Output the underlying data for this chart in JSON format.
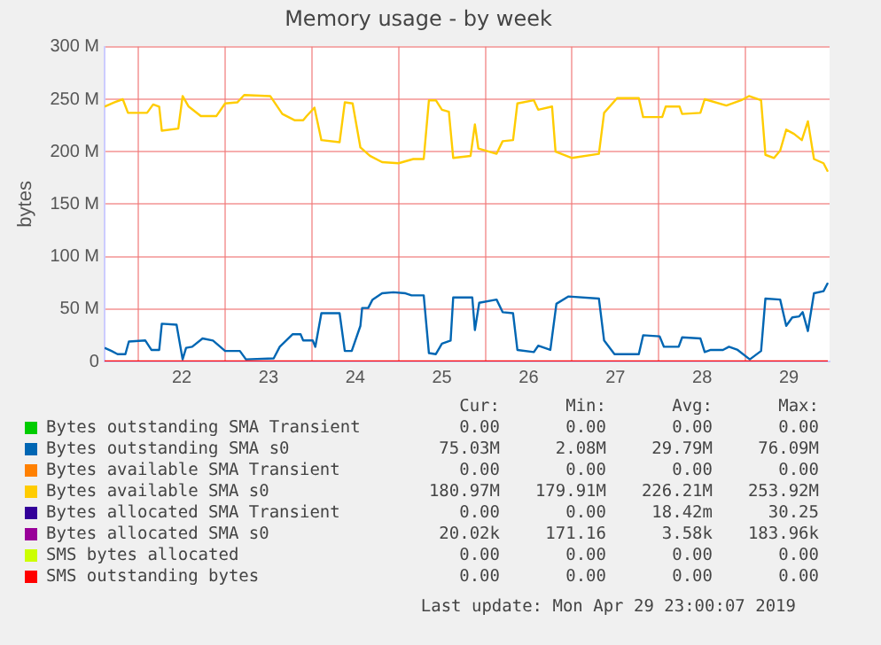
{
  "chart_data": {
    "type": "line",
    "title": "Memory usage - by week",
    "ylabel": "bytes",
    "xlim": [
      21.11,
      29.47
    ],
    "xticks": [
      {
        "value": 21.5,
        "label": null
      },
      {
        "value": 22,
        "label": "22"
      },
      {
        "value": 22.5,
        "label": null
      },
      {
        "value": 23,
        "label": "23"
      },
      {
        "value": 23.5,
        "label": null
      },
      {
        "value": 24,
        "label": "24"
      },
      {
        "value": 24.5,
        "label": null
      },
      {
        "value": 25,
        "label": "25"
      },
      {
        "value": 25.5,
        "label": null
      },
      {
        "value": 26,
        "label": "26"
      },
      {
        "value": 26.5,
        "label": null
      },
      {
        "value": 27,
        "label": "27"
      },
      {
        "value": 27.5,
        "label": null
      },
      {
        "value": 28,
        "label": "28"
      },
      {
        "value": 28.5,
        "label": null
      },
      {
        "value": 29,
        "label": "29"
      }
    ],
    "ylim": [
      0,
      300
    ],
    "yticks": [
      0,
      {
        "value": 50,
        "label": "50 M"
      },
      {
        "value": 100,
        "label": "100 M"
      },
      {
        "value": 150,
        "label": "150 M"
      },
      {
        "value": 200,
        "label": "200 M"
      },
      {
        "value": 250,
        "label": "250 M"
      },
      {
        "value": 300,
        "label": "300 M"
      }
    ],
    "grid": true,
    "legend": "bottom",
    "series": [
      {
        "name": "Bytes outstanding SMA Transient",
        "color": "#00cc00"
      },
      {
        "name": "Bytes outstanding SMA s0",
        "color": "#0066b3",
        "x": [
          21.11,
          21.19,
          21.26,
          21.35,
          21.39,
          21.58,
          21.65,
          21.74,
          21.77,
          21.94,
          22.01,
          22.05,
          22.12,
          22.24,
          22.36,
          22.5,
          22.67,
          22.74,
          23.06,
          23.13,
          23.28,
          23.37,
          23.4,
          23.51,
          23.54,
          23.61,
          23.82,
          23.88,
          23.96,
          24.06,
          24.08,
          24.15,
          24.2,
          24.31,
          24.44,
          24.58,
          24.65,
          24.79,
          24.85,
          24.93,
          25.0,
          25.1,
          25.13,
          25.35,
          25.38,
          25.43,
          25.63,
          25.7,
          25.82,
          25.87,
          26.06,
          26.11,
          26.25,
          26.32,
          26.46,
          26.81,
          26.87,
          26.99,
          27.27,
          27.32,
          27.51,
          27.56,
          27.73,
          27.77,
          27.98,
          28.03,
          28.1,
          28.24,
          28.31,
          28.41,
          28.55,
          28.68,
          28.73,
          28.9,
          28.97,
          29.04,
          29.12,
          29.16,
          29.22,
          29.29,
          29.4,
          29.45
        ],
        "values": [
          13,
          10,
          7,
          7,
          19,
          20,
          11,
          11,
          36,
          35,
          2,
          13,
          14,
          22,
          20,
          10,
          10,
          2,
          3,
          14,
          26,
          26,
          20,
          20,
          14,
          46,
          46,
          10,
          10,
          34,
          51,
          51,
          59,
          65,
          66,
          65,
          63,
          63,
          8,
          7,
          17,
          20,
          61,
          61,
          30,
          56,
          59,
          47,
          46,
          11,
          9,
          15,
          11,
          55,
          62,
          60,
          20,
          7,
          7,
          25,
          24,
          14,
          14,
          23,
          22,
          9,
          11,
          11,
          14,
          11,
          2,
          10,
          60,
          59,
          34,
          42,
          43,
          47,
          29,
          65,
          67,
          75
        ]
      },
      {
        "name": "Bytes available SMA Transient",
        "color": "#ff8000"
      },
      {
        "name": "Bytes available SMA s0",
        "color": "#ffcc00",
        "x": [
          21.11,
          21.22,
          21.32,
          21.38,
          21.6,
          21.67,
          21.74,
          21.77,
          21.96,
          22.01,
          22.08,
          22.22,
          22.4,
          22.5,
          22.64,
          22.72,
          23.02,
          23.16,
          23.3,
          23.4,
          23.44,
          23.53,
          23.61,
          23.82,
          23.88,
          23.97,
          24.06,
          24.17,
          24.31,
          24.5,
          24.67,
          24.79,
          24.85,
          24.93,
          25.0,
          25.08,
          25.13,
          25.33,
          25.38,
          25.42,
          25.63,
          25.7,
          25.82,
          25.87,
          26.06,
          26.11,
          26.27,
          26.31,
          26.5,
          26.81,
          26.87,
          27.02,
          27.27,
          27.32,
          27.54,
          27.58,
          27.74,
          27.77,
          27.98,
          28.03,
          28.28,
          28.45,
          28.54,
          28.68,
          28.73,
          28.83,
          28.9,
          28.97,
          29.06,
          29.15,
          29.22,
          29.29,
          29.4,
          29.45
        ],
        "values": [
          243,
          247,
          250,
          237,
          237,
          245,
          243,
          220,
          222,
          253,
          243,
          234,
          234,
          246,
          247,
          254,
          253,
          236,
          230,
          230,
          234,
          242,
          211,
          209,
          247,
          246,
          204,
          196,
          190,
          189,
          193,
          193,
          249,
          249,
          240,
          238,
          194,
          196,
          226,
          203,
          198,
          210,
          211,
          246,
          249,
          240,
          243,
          200,
          194,
          198,
          237,
          251,
          251,
          233,
          233,
          243,
          243,
          236,
          237,
          250,
          244,
          249,
          253,
          249,
          197,
          194,
          201,
          221,
          217,
          211,
          229,
          193,
          189,
          181
        ]
      },
      {
        "name": "Bytes allocated SMA Transient",
        "color": "#330099"
      },
      {
        "name": "Bytes allocated SMA s0",
        "color": "#990099"
      },
      {
        "name": "SMS bytes allocated",
        "color": "#ccff00"
      },
      {
        "name": "SMS outstanding bytes",
        "color": "#ff0000",
        "x": [
          21.11,
          29.45
        ],
        "values": [
          0,
          0
        ]
      }
    ],
    "annotations": [
      "Cur:",
      "Min:",
      "Avg:",
      "Max:",
      "0.00",
      "0.00",
      "0.00",
      "0.00",
      "75.03M",
      "2.08M",
      "29.79M",
      "76.09M",
      "0.00",
      "0.00",
      "0.00",
      "0.00",
      "180.97M",
      "179.91M",
      "226.21M",
      "253.92M",
      "0.00",
      "0.00",
      "18.42m",
      "30.25",
      "20.02k",
      "171.16",
      "3.58k",
      "183.96k",
      "0.00",
      "0.00",
      "0.00",
      "0.00",
      "0.00",
      "0.00",
      "0.00",
      "0.00",
      "Last update: Mon Apr 29 23:00:07 2019"
    ]
  }
}
